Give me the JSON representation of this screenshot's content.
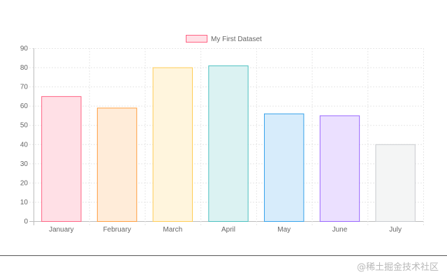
{
  "chart_data": {
    "type": "bar",
    "title": "",
    "xlabel": "",
    "ylabel": "",
    "categories": [
      "January",
      "February",
      "March",
      "April",
      "May",
      "June",
      "July"
    ],
    "series": [
      {
        "name": "My First Dataset",
        "values": [
          65,
          59,
          80,
          81,
          56,
          55,
          40
        ]
      }
    ],
    "ylim": [
      0,
      90
    ],
    "yticks": [
      0,
      10,
      20,
      30,
      40,
      50,
      60,
      70,
      80,
      90
    ],
    "grid": true,
    "legend_position": "top",
    "bar_fill_colors": [
      "#ffe0e6",
      "#ffecd9",
      "#fff5dd",
      "#dbf2f2",
      "#d7ecfb",
      "#ebe0ff",
      "#f4f5f5"
    ],
    "bar_border_colors": [
      "#ff6384",
      "#ff9f40",
      "#ffcd56",
      "#4bc0c0",
      "#36a2eb",
      "#9966ff",
      "#c9cbcf"
    ],
    "legend_swatch": {
      "fill": "#ffe0e6",
      "border": "#ff6384"
    }
  },
  "watermark": "@稀土掘金技术社区"
}
